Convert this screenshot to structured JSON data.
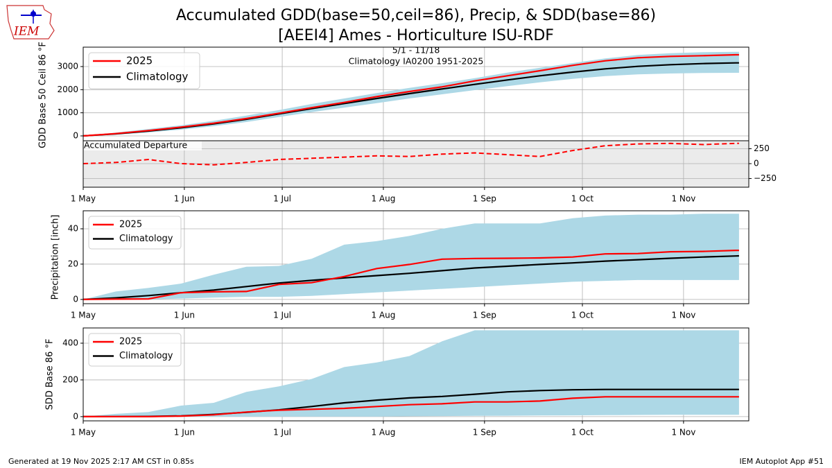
{
  "title": "Accumulated GDD(base=50,ceil=86), Precip, & SDD(base=86)",
  "subtitle": "[AEEI4] Ames - Horticulture ISU-RDF",
  "logo_text": "IEM",
  "footer_left": "Generated at 19 Nov 2025 2:17 AM CST in 0.85s",
  "footer_right": "IEM Autoplot App #51",
  "chart_data": [
    {
      "type": "line",
      "ylabel": "GDD Base 50 Ceil 86 °F",
      "annotations": [
        "5/1 - 11/18",
        "Climatology IA0200 1951-2025"
      ],
      "xlim": [
        0,
        204
      ],
      "xticks": [
        {
          "value": 0,
          "label": "1 May"
        },
        {
          "value": 31,
          "label": "1 Jun"
        },
        {
          "value": 61,
          "label": "1 Jul"
        },
        {
          "value": 92,
          "label": "1 Aug"
        },
        {
          "value": 123,
          "label": "1 Sep"
        },
        {
          "value": 153,
          "label": "1 Oct"
        },
        {
          "value": 184,
          "label": "1 Nov"
        }
      ],
      "ylim": [
        -210,
        3840
      ],
      "yticks": [
        0,
        1000,
        2000,
        3000
      ],
      "grid": true,
      "legend": "upper left",
      "x": [
        0,
        10,
        20,
        30,
        40,
        50,
        60,
        70,
        80,
        90,
        100,
        110,
        120,
        130,
        140,
        150,
        160,
        170,
        180,
        190,
        200,
        201
      ],
      "band": {
        "color": "#add8e6",
        "lower": [
          0,
          50,
          150,
          270,
          420,
          600,
          820,
          1030,
          1220,
          1420,
          1620,
          1800,
          1980,
          2150,
          2320,
          2470,
          2590,
          2660,
          2700,
          2720,
          2730,
          2730
        ],
        "upper": [
          0,
          140,
          300,
          460,
          650,
          880,
          1120,
          1380,
          1620,
          1850,
          2080,
          2280,
          2500,
          2740,
          2950,
          3150,
          3350,
          3500,
          3580,
          3620,
          3640,
          3640
        ]
      },
      "series": [
        {
          "name": "2025",
          "color": "#ff0000",
          "values": [
            0,
            100,
            230,
            380,
            550,
            750,
            980,
            1220,
            1450,
            1700,
            1920,
            2120,
            2380,
            2600,
            2820,
            3050,
            3250,
            3380,
            3440,
            3470,
            3510,
            3510
          ]
        },
        {
          "name": "Climatology",
          "color": "#000000",
          "values": [
            0,
            90,
            210,
            350,
            520,
            720,
            950,
            1180,
            1400,
            1620,
            1830,
            2030,
            2230,
            2420,
            2600,
            2760,
            2900,
            3010,
            3080,
            3130,
            3160,
            3160
          ]
        }
      ],
      "departure": {
        "annotation": "Accumulated Departure",
        "background": "#ebebeb",
        "color": "#ff0000",
        "linestyle": "dashed",
        "ylim": [
          -395,
          384
        ],
        "yticks": [
          {
            "value": -250,
            "label": "−250"
          },
          0,
          250
        ],
        "values": [
          0,
          20,
          70,
          0,
          -20,
          20,
          70,
          90,
          110,
          130,
          120,
          160,
          180,
          150,
          120,
          220,
          300,
          330,
          340,
          320,
          340,
          340
        ]
      }
    },
    {
      "type": "line",
      "ylabel": "Precipitation [inch]",
      "xlim": [
        0,
        204
      ],
      "xticks": [
        {
          "value": 0,
          "label": "1 May"
        },
        {
          "value": 31,
          "label": "1 Jun"
        },
        {
          "value": 61,
          "label": "1 Jul"
        },
        {
          "value": 92,
          "label": "1 Aug"
        },
        {
          "value": 123,
          "label": "1 Sep"
        },
        {
          "value": 153,
          "label": "1 Oct"
        },
        {
          "value": 184,
          "label": "1 Nov"
        }
      ],
      "ylim": [
        -2.4,
        50.2
      ],
      "yticks": [
        0,
        20,
        40
      ],
      "grid": true,
      "legend": "upper left",
      "x": [
        0,
        10,
        20,
        30,
        40,
        50,
        60,
        70,
        80,
        90,
        100,
        110,
        120,
        130,
        140,
        150,
        160,
        170,
        180,
        190,
        200,
        201
      ],
      "band": {
        "color": "#add8e6",
        "lower": [
          0,
          0,
          0,
          0.5,
          1,
          1.5,
          1.5,
          2,
          3,
          4,
          5,
          6,
          7,
          8,
          9,
          10,
          10.5,
          11,
          11,
          11,
          11,
          11
        ],
        "upper": [
          0,
          4.5,
          6.5,
          9,
          14,
          18.5,
          19,
          23,
          31,
          33,
          36,
          40,
          43,
          43,
          43,
          46,
          47.5,
          48,
          48,
          48.5,
          48.5,
          48.5
        ]
      },
      "series": [
        {
          "name": "2025",
          "color": "#ff0000",
          "values": [
            0,
            0.2,
            0.3,
            3.8,
            4.3,
            4.5,
            8.5,
            9.5,
            13,
            17.5,
            19.8,
            22.8,
            23.2,
            23.3,
            23.5,
            24,
            25.8,
            26,
            27,
            27.2,
            27.8,
            27.8
          ]
        },
        {
          "name": "Climatology",
          "color": "#000000",
          "values": [
            0,
            0.9,
            2.2,
            3.8,
            5.3,
            7.3,
            9.3,
            10.8,
            12.2,
            13.5,
            14.8,
            16.3,
            17.8,
            18.8,
            19.8,
            20.7,
            21.7,
            22.5,
            23.3,
            24,
            24.6,
            24.7
          ]
        }
      ]
    },
    {
      "type": "line",
      "ylabel": "SDD Base 86 °F",
      "xlim": [
        0,
        204
      ],
      "xticks": [
        {
          "value": 0,
          "label": "1 May"
        },
        {
          "value": 31,
          "label": "1 Jun"
        },
        {
          "value": 61,
          "label": "1 Jul"
        },
        {
          "value": 92,
          "label": "1 Aug"
        },
        {
          "value": 123,
          "label": "1 Sep"
        },
        {
          "value": 153,
          "label": "1 Oct"
        },
        {
          "value": 184,
          "label": "1 Nov"
        }
      ],
      "ylim": [
        -23,
        483
      ],
      "yticks": [
        0,
        200,
        400
      ],
      "grid": true,
      "legend": "upper left",
      "x": [
        0,
        10,
        20,
        30,
        40,
        50,
        60,
        70,
        80,
        90,
        100,
        110,
        120,
        130,
        140,
        150,
        160,
        170,
        180,
        190,
        200,
        201
      ],
      "band": {
        "color": "#add8e6",
        "lower": [
          0,
          0,
          0,
          0,
          0,
          0,
          0,
          0,
          0,
          0,
          2,
          3,
          4,
          5,
          6,
          7,
          8,
          9,
          10,
          10,
          10,
          10
        ],
        "upper": [
          0,
          15,
          25,
          60,
          75,
          135,
          165,
          205,
          270,
          295,
          330,
          410,
          470,
          470,
          470,
          470,
          470,
          470,
          470,
          470,
          470,
          470
        ]
      },
      "series": [
        {
          "name": "2025",
          "color": "#ff0000",
          "values": [
            0,
            0,
            0,
            3,
            10,
            25,
            35,
            40,
            45,
            55,
            65,
            70,
            80,
            80,
            85,
            100,
            108,
            108,
            108,
            108,
            108,
            108
          ]
        },
        {
          "name": "Climatology",
          "color": "#000000",
          "values": [
            0,
            0,
            1,
            4,
            12,
            24,
            37,
            55,
            75,
            90,
            102,
            110,
            122,
            135,
            142,
            146,
            148,
            148,
            148,
            148,
            148,
            148
          ]
        }
      ]
    }
  ]
}
